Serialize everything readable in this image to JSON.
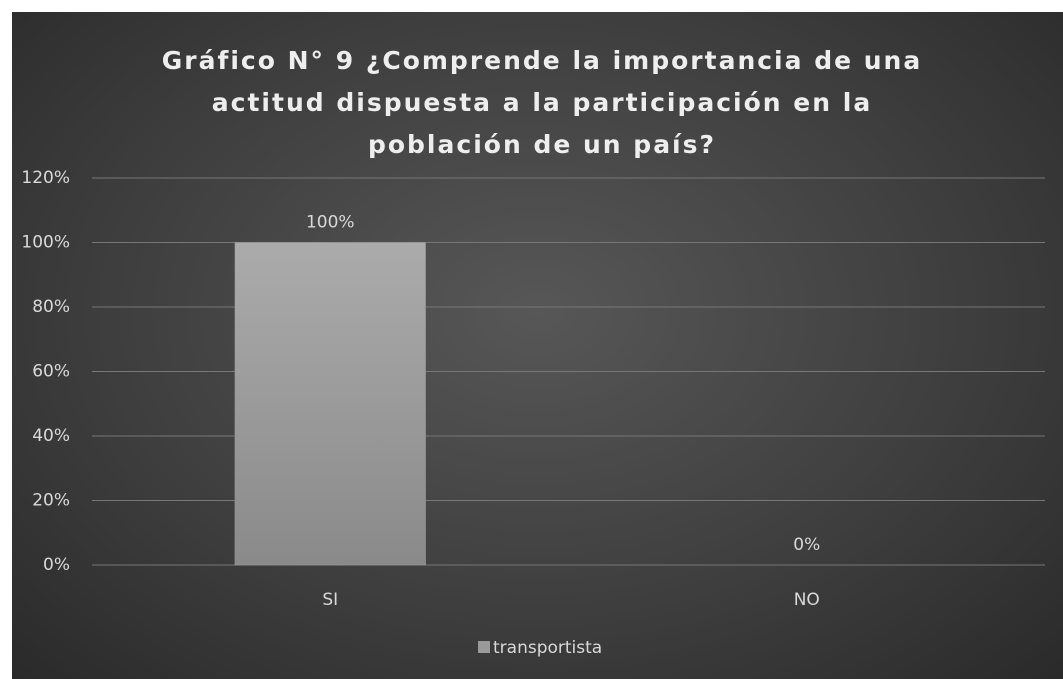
{
  "chart_data": {
    "type": "bar",
    "title": "Gráfico N° 9 ¿Comprende la importancia de una actitud dispuesta a la participación en la población de un país?",
    "categories": [
      "SI",
      "NO"
    ],
    "series": [
      {
        "name": "transportista",
        "color": "#9a9a9a",
        "values": [
          100,
          0
        ],
        "value_labels": [
          "100%",
          "0%"
        ]
      }
    ],
    "ylim": [
      0,
      120
    ],
    "yticks": [
      {
        "value": 0,
        "label": "0%"
      },
      {
        "value": 20,
        "label": "20%"
      },
      {
        "value": 40,
        "label": "40%"
      },
      {
        "value": 60,
        "label": "60%"
      },
      {
        "value": 80,
        "label": "80%"
      },
      {
        "value": 100,
        "label": "100%"
      },
      {
        "value": 120,
        "label": "120%"
      }
    ],
    "grid": true,
    "legend": "bottom"
  }
}
